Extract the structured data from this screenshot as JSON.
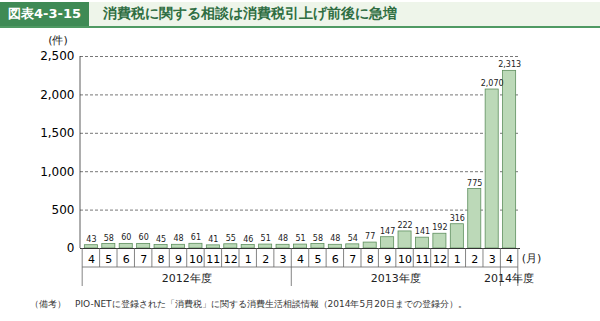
{
  "chart_data": {
    "type": "bar",
    "title_label": "図表4-3-15",
    "title": "消費税に関する相談は消費税引上げ前後に急増",
    "y_label": "(件)",
    "x_label": "(月)",
    "categories": [
      "4",
      "5",
      "6",
      "7",
      "8",
      "9",
      "10",
      "11",
      "12",
      "1",
      "2",
      "3",
      "4",
      "5",
      "6",
      "7",
      "8",
      "9",
      "10",
      "11",
      "12",
      "1",
      "2",
      "3",
      "4"
    ],
    "values": [
      43,
      58,
      60,
      60,
      45,
      48,
      61,
      41,
      55,
      46,
      51,
      48,
      51,
      58,
      48,
      54,
      77,
      147,
      222,
      141,
      192,
      316,
      775,
      2070,
      2313
    ],
    "value_labels": [
      "43",
      "58",
      "60",
      "60",
      "45",
      "48",
      "61",
      "41",
      "55",
      "46",
      "51",
      "48",
      "51",
      "58",
      "48",
      "54",
      "77",
      "147",
      "222",
      "141",
      "192",
      "316",
      "775",
      "2,070",
      "2,313"
    ],
    "groups": [
      {
        "label": "2012年度",
        "count": 12
      },
      {
        "label": "2013年度",
        "count": 12
      },
      {
        "label": "2014年度",
        "count": 1
      }
    ],
    "color": "#bcd9b8",
    "ylim": [
      0,
      2500
    ],
    "yticks": [
      0,
      500,
      {
        "value": 1000,
        "label": "1,000"
      },
      {
        "value": 1500,
        "label": "1,500"
      },
      {
        "value": 2000,
        "label": "2,000"
      },
      {
        "value": 2500,
        "label": "2,500"
      }
    ],
    "grid": true,
    "data_labels": true,
    "note": "（備考）　PIO-NETに登録された「消費税」に関する消費生活相談情報（2014年5月20日までの登録分）。"
  }
}
